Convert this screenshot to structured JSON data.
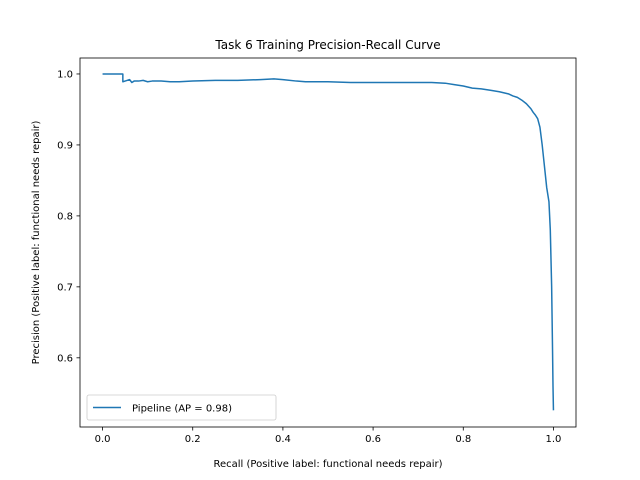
{
  "chart_data": {
    "type": "line",
    "title": "Task 6 Training Precision-Recall Curve",
    "xlabel": "Recall (Positive label: functional needs repair)",
    "ylabel": "Precision (Positive label: functional needs repair)",
    "xlim": [
      -0.05,
      1.05
    ],
    "ylim": [
      0.5025,
      1.0225
    ],
    "xticks": [
      0.0,
      0.2,
      0.4,
      0.6,
      0.8,
      1.0
    ],
    "xtick_labels": [
      "0.0",
      "0.2",
      "0.4",
      "0.6",
      "0.8",
      "1.0"
    ],
    "yticks": [
      0.6,
      0.7,
      0.8,
      0.9,
      1.0
    ],
    "ytick_labels": [
      "0.6",
      "0.7",
      "0.8",
      "0.9",
      "1.0"
    ],
    "grid": false,
    "legend_position": "lower-left",
    "series": [
      {
        "name": "Pipeline (AP = 0.98)",
        "color": "#1f77b4",
        "x": [
          0.0,
          0.045,
          0.045,
          0.05,
          0.06,
          0.065,
          0.07,
          0.08,
          0.09,
          0.1,
          0.11,
          0.13,
          0.15,
          0.17,
          0.2,
          0.25,
          0.3,
          0.35,
          0.38,
          0.4,
          0.43,
          0.45,
          0.5,
          0.55,
          0.6,
          0.65,
          0.7,
          0.73,
          0.76,
          0.78,
          0.8,
          0.82,
          0.84,
          0.86,
          0.88,
          0.9,
          0.91,
          0.92,
          0.93,
          0.94,
          0.95,
          0.955,
          0.96,
          0.965,
          0.97,
          0.975,
          0.98,
          0.985,
          0.99,
          0.993,
          0.996,
          0.998,
          0.999,
          1.0
        ],
        "y": [
          1.0,
          1.0,
          0.989,
          0.99,
          0.992,
          0.988,
          0.99,
          0.99,
          0.991,
          0.989,
          0.99,
          0.99,
          0.989,
          0.989,
          0.99,
          0.991,
          0.991,
          0.992,
          0.993,
          0.992,
          0.99,
          0.989,
          0.989,
          0.988,
          0.988,
          0.988,
          0.988,
          0.988,
          0.987,
          0.985,
          0.983,
          0.98,
          0.979,
          0.977,
          0.975,
          0.972,
          0.969,
          0.967,
          0.963,
          0.958,
          0.951,
          0.946,
          0.942,
          0.937,
          0.925,
          0.9,
          0.87,
          0.84,
          0.82,
          0.78,
          0.7,
          0.61,
          0.56,
          0.526
        ]
      }
    ]
  }
}
